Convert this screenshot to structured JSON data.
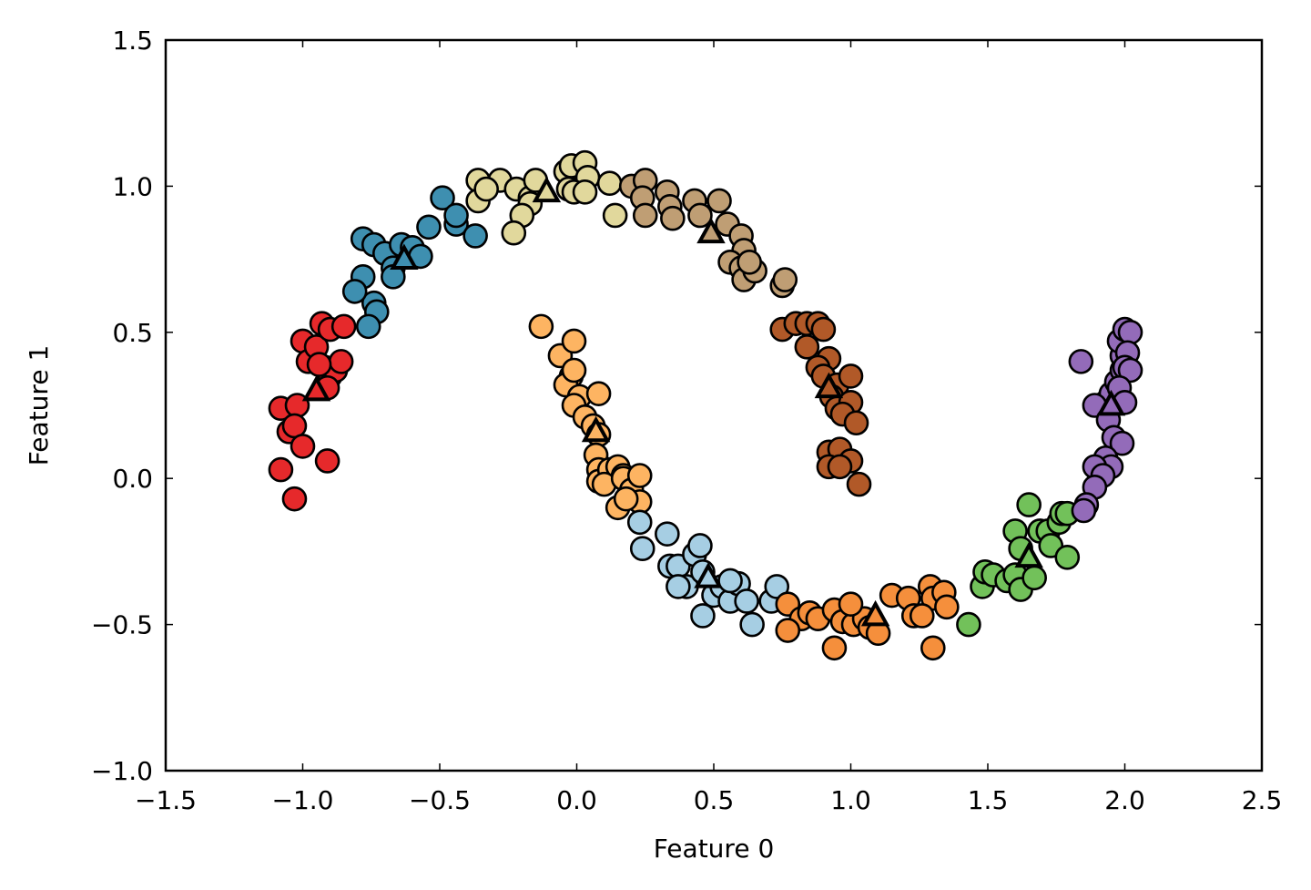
{
  "chart_data": {
    "type": "scatter",
    "title": "",
    "xlabel": "Feature 0",
    "ylabel": "Feature 1",
    "xlim": [
      -1.5,
      2.5
    ],
    "ylim": [
      -1.0,
      1.5
    ],
    "xticks": [
      -1.5,
      -1.0,
      -0.5,
      0.0,
      0.5,
      1.0,
      1.5,
      2.0,
      2.5
    ],
    "yticks": [
      -1.0,
      -0.5,
      0.0,
      0.5,
      1.0,
      1.5
    ],
    "xtick_labels": [
      "−1.5",
      "−1.0",
      "−0.5",
      "0.0",
      "0.5",
      "1.0",
      "1.5",
      "2.0",
      "2.5"
    ],
    "ytick_labels": [
      "−1.0",
      "−0.5",
      "0.0",
      "0.5",
      "1.0",
      "1.5"
    ],
    "grid": false,
    "legend": "none",
    "marker_edge_color": "#000000",
    "clusters": [
      {
        "color": "#e6292b",
        "center": [
          -0.95,
          0.3
        ],
        "points": [
          [
            -1.08,
            0.24
          ],
          [
            -1.02,
            0.25
          ],
          [
            -1.05,
            0.16
          ],
          [
            -1.03,
            0.18
          ],
          [
            -1.0,
            0.47
          ],
          [
            -0.98,
            0.4
          ],
          [
            -0.95,
            0.45
          ],
          [
            -0.93,
            0.53
          ],
          [
            -0.9,
            0.51
          ],
          [
            -0.92,
            0.38
          ],
          [
            -0.9,
            0.35
          ],
          [
            -0.88,
            0.37
          ],
          [
            -0.86,
            0.4
          ],
          [
            -0.85,
            0.52
          ],
          [
            -0.94,
            0.39
          ],
          [
            -0.91,
            0.31
          ],
          [
            -1.0,
            0.11
          ],
          [
            -0.91,
            0.06
          ],
          [
            -1.08,
            0.03
          ],
          [
            -1.03,
            -0.07
          ]
        ]
      },
      {
        "color": "#3e8fb0",
        "center": [
          -0.63,
          0.75
        ],
        "points": [
          [
            -0.78,
            0.82
          ],
          [
            -0.74,
            0.8
          ],
          [
            -0.7,
            0.77
          ],
          [
            -0.67,
            0.72
          ],
          [
            -0.64,
            0.8
          ],
          [
            -0.6,
            0.79
          ],
          [
            -0.57,
            0.76
          ],
          [
            -0.54,
            0.86
          ],
          [
            -0.49,
            0.96
          ],
          [
            -0.44,
            0.87
          ],
          [
            -0.37,
            0.83
          ],
          [
            -0.44,
            0.9
          ],
          [
            -0.78,
            0.69
          ],
          [
            -0.74,
            0.6
          ],
          [
            -0.73,
            0.57
          ],
          [
            -0.76,
            0.52
          ],
          [
            -0.67,
            0.69
          ],
          [
            -0.81,
            0.64
          ]
        ]
      },
      {
        "color": "#e1d89c",
        "center": [
          -0.11,
          0.98
        ],
        "points": [
          [
            -0.36,
            1.02
          ],
          [
            -0.28,
            1.02
          ],
          [
            -0.36,
            0.95
          ],
          [
            -0.33,
            0.99
          ],
          [
            -0.22,
            0.99
          ],
          [
            -0.17,
            0.96
          ],
          [
            -0.15,
            1.02
          ],
          [
            -0.17,
            0.94
          ],
          [
            -0.2,
            0.9
          ],
          [
            -0.23,
            0.84
          ],
          [
            -0.04,
            1.05
          ],
          [
            -0.02,
            1.07
          ],
          [
            0.03,
            1.08
          ],
          [
            0.04,
            1.03
          ],
          [
            -0.03,
            0.99
          ],
          [
            -0.01,
            0.98
          ],
          [
            0.03,
            0.98
          ],
          [
            0.12,
            1.01
          ],
          [
            0.14,
            0.9
          ]
        ]
      },
      {
        "color": "#bf9e74",
        "center": [
          0.49,
          0.84
        ],
        "points": [
          [
            0.2,
            1.0
          ],
          [
            0.25,
            1.02
          ],
          [
            0.24,
            0.96
          ],
          [
            0.25,
            0.9
          ],
          [
            0.33,
            0.98
          ],
          [
            0.34,
            0.93
          ],
          [
            0.35,
            0.89
          ],
          [
            0.43,
            0.95
          ],
          [
            0.45,
            0.9
          ],
          [
            0.52,
            0.95
          ],
          [
            0.55,
            0.87
          ],
          [
            0.6,
            0.83
          ],
          [
            0.61,
            0.78
          ],
          [
            0.56,
            0.74
          ],
          [
            0.6,
            0.72
          ],
          [
            0.61,
            0.68
          ],
          [
            0.65,
            0.71
          ],
          [
            0.63,
            0.74
          ],
          [
            0.75,
            0.66
          ],
          [
            0.76,
            0.68
          ]
        ]
      },
      {
        "color": "#b15928",
        "center": [
          0.92,
          0.31
        ],
        "points": [
          [
            0.75,
            0.51
          ],
          [
            0.8,
            0.53
          ],
          [
            0.84,
            0.53
          ],
          [
            0.88,
            0.53
          ],
          [
            0.9,
            0.51
          ],
          [
            0.84,
            0.45
          ],
          [
            0.92,
            0.41
          ],
          [
            0.88,
            0.38
          ],
          [
            0.9,
            0.35
          ],
          [
            0.95,
            0.32
          ],
          [
            1.0,
            0.35
          ],
          [
            0.93,
            0.28
          ],
          [
            0.95,
            0.24
          ],
          [
            1.0,
            0.26
          ],
          [
            0.97,
            0.22
          ],
          [
            1.02,
            0.19
          ],
          [
            0.92,
            0.09
          ],
          [
            0.96,
            0.1
          ],
          [
            1.0,
            0.06
          ],
          [
            1.03,
            -0.02
          ],
          [
            0.92,
            0.04
          ],
          [
            0.96,
            0.04
          ]
        ]
      },
      {
        "color": "#fdb462",
        "center": [
          0.07,
          0.16
        ],
        "points": [
          [
            -0.13,
            0.52
          ],
          [
            -0.06,
            0.42
          ],
          [
            -0.01,
            0.47
          ],
          [
            -0.02,
            0.35
          ],
          [
            -0.04,
            0.32
          ],
          [
            -0.01,
            0.37
          ],
          [
            0.01,
            0.28
          ],
          [
            -0.01,
            0.25
          ],
          [
            0.03,
            0.21
          ],
          [
            0.06,
            0.18
          ],
          [
            0.08,
            0.15
          ],
          [
            0.07,
            0.08
          ],
          [
            0.08,
            0.03
          ],
          [
            0.08,
            -0.01
          ],
          [
            0.12,
            0.03
          ],
          [
            0.15,
            0.04
          ],
          [
            0.17,
            0.01
          ],
          [
            0.1,
            -0.02
          ],
          [
            0.17,
            0.0
          ],
          [
            0.2,
            -0.04
          ],
          [
            0.23,
            0.01
          ],
          [
            0.23,
            -0.08
          ],
          [
            0.15,
            -0.1
          ],
          [
            0.18,
            -0.07
          ],
          [
            0.08,
            0.29
          ]
        ]
      },
      {
        "color": "#a6cee3",
        "center": [
          0.48,
          -0.34
        ],
        "points": [
          [
            0.23,
            -0.15
          ],
          [
            0.24,
            -0.24
          ],
          [
            0.33,
            -0.19
          ],
          [
            0.34,
            -0.3
          ],
          [
            0.37,
            -0.3
          ],
          [
            0.4,
            -0.37
          ],
          [
            0.43,
            -0.26
          ],
          [
            0.45,
            -0.23
          ],
          [
            0.46,
            -0.32
          ],
          [
            0.5,
            -0.4
          ],
          [
            0.53,
            -0.37
          ],
          [
            0.56,
            -0.42
          ],
          [
            0.59,
            -0.36
          ],
          [
            0.62,
            -0.42
          ],
          [
            0.64,
            -0.5
          ],
          [
            0.71,
            -0.42
          ],
          [
            0.73,
            -0.37
          ],
          [
            0.46,
            -0.47
          ],
          [
            0.37,
            -0.37
          ],
          [
            0.56,
            -0.35
          ]
        ]
      },
      {
        "color": "#f58f3c",
        "center": [
          1.09,
          -0.47
        ],
        "points": [
          [
            0.77,
            -0.43
          ],
          [
            0.82,
            -0.48
          ],
          [
            0.85,
            -0.46
          ],
          [
            0.88,
            -0.48
          ],
          [
            0.94,
            -0.45
          ],
          [
            0.97,
            -0.49
          ],
          [
            1.01,
            -0.5
          ],
          [
            1.05,
            -0.48
          ],
          [
            1.07,
            -0.51
          ],
          [
            1.1,
            -0.53
          ],
          [
            1.15,
            -0.4
          ],
          [
            1.21,
            -0.41
          ],
          [
            1.23,
            -0.47
          ],
          [
            1.29,
            -0.37
          ],
          [
            1.3,
            -0.41
          ],
          [
            1.34,
            -0.39
          ],
          [
            1.35,
            -0.44
          ],
          [
            1.26,
            -0.47
          ],
          [
            1.3,
            -0.58
          ],
          [
            0.94,
            -0.58
          ],
          [
            0.77,
            -0.52
          ],
          [
            1.0,
            -0.43
          ]
        ]
      },
      {
        "color": "#72c15a",
        "center": [
          1.65,
          -0.27
        ],
        "points": [
          [
            1.43,
            -0.5
          ],
          [
            1.48,
            -0.37
          ],
          [
            1.49,
            -0.32
          ],
          [
            1.52,
            -0.33
          ],
          [
            1.57,
            -0.35
          ],
          [
            1.6,
            -0.33
          ],
          [
            1.62,
            -0.38
          ],
          [
            1.67,
            -0.34
          ],
          [
            1.65,
            -0.09
          ],
          [
            1.6,
            -0.18
          ],
          [
            1.62,
            -0.24
          ],
          [
            1.69,
            -0.18
          ],
          [
            1.72,
            -0.18
          ],
          [
            1.73,
            -0.23
          ],
          [
            1.76,
            -0.15
          ],
          [
            1.77,
            -0.12
          ],
          [
            1.79,
            -0.27
          ],
          [
            1.79,
            -0.12
          ]
        ]
      },
      {
        "color": "#936bb9",
        "center": [
          1.95,
          0.25
        ],
        "points": [
          [
            1.84,
            0.4
          ],
          [
            1.93,
            0.26
          ],
          [
            1.95,
            0.29
          ],
          [
            1.97,
            0.33
          ],
          [
            1.99,
            0.37
          ],
          [
            1.99,
            0.42
          ],
          [
            1.98,
            0.47
          ],
          [
            2.0,
            0.51
          ],
          [
            2.02,
            0.5
          ],
          [
            2.01,
            0.43
          ],
          [
            2.0,
            0.38
          ],
          [
            2.02,
            0.37
          ],
          [
            1.98,
            0.31
          ],
          [
            2.0,
            0.26
          ],
          [
            1.89,
            0.25
          ],
          [
            1.94,
            0.2
          ],
          [
            1.96,
            0.14
          ],
          [
            1.99,
            0.12
          ],
          [
            1.93,
            0.07
          ],
          [
            1.95,
            0.04
          ],
          [
            1.89,
            0.04
          ],
          [
            1.92,
            0.01
          ],
          [
            1.89,
            -0.03
          ],
          [
            1.86,
            -0.09
          ],
          [
            1.85,
            -0.11
          ]
        ]
      }
    ]
  }
}
